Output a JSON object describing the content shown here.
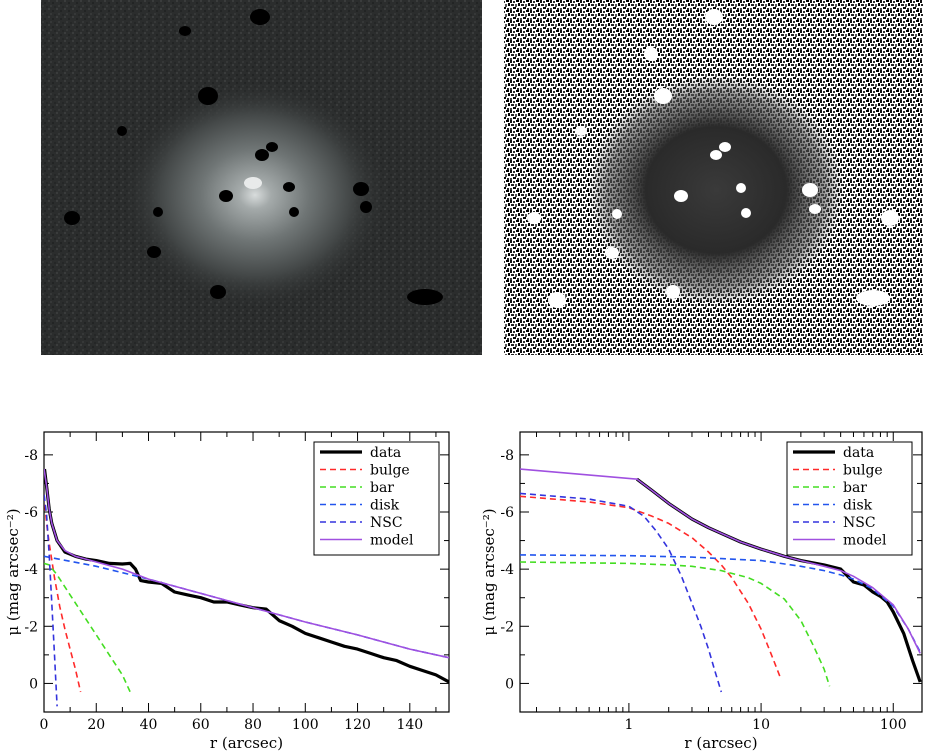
{
  "chart_data": [
    {
      "type": "image",
      "panel": "top-left",
      "description_visible": "grayscale galaxy image with masked (black) point sources"
    },
    {
      "type": "image",
      "panel": "top-right",
      "description_visible": "residual image with masked (white) point sources"
    },
    {
      "type": "line",
      "panel": "bottom-left",
      "xlabel": "r (arcsec)",
      "ylabel": "μ (mag arcsec⁻²)",
      "xscale": "linear",
      "xlim": [
        0,
        155
      ],
      "ylim": [
        1.0,
        -8.8
      ],
      "x_ticks": [
        0,
        20,
        40,
        60,
        80,
        100,
        120,
        140
      ],
      "x_tick_labels": [
        "0",
        "20",
        "40",
        "60",
        "80",
        "100",
        "120",
        "140"
      ],
      "y_ticks": [
        -8,
        -6,
        -4,
        -2,
        0
      ],
      "y_tick_labels": [
        "-8",
        "-6",
        "-4",
        "-2",
        "0"
      ],
      "legend_position": "top-right",
      "series": [
        {
          "name": "data",
          "color": "#000000",
          "style": "solid",
          "width": 3.2,
          "x": [
            0.2,
            1,
            2,
            3,
            5,
            8,
            12,
            16,
            20,
            25,
            30,
            33,
            35,
            37,
            40,
            45,
            50,
            55,
            60,
            65,
            70,
            75,
            80,
            85,
            90,
            95,
            100,
            105,
            110,
            115,
            120,
            125,
            130,
            135,
            140,
            145,
            150,
            155
          ],
          "y": [
            -7.5,
            -6.9,
            -6.1,
            -5.6,
            -5.0,
            -4.6,
            -4.45,
            -4.35,
            -4.3,
            -4.2,
            -4.18,
            -4.2,
            -4.0,
            -3.6,
            -3.55,
            -3.5,
            -3.2,
            -3.1,
            -3.0,
            -2.85,
            -2.85,
            -2.75,
            -2.65,
            -2.6,
            -2.2,
            -2.0,
            -1.75,
            -1.6,
            -1.45,
            -1.3,
            -1.2,
            -1.05,
            -0.9,
            -0.8,
            -0.6,
            -0.45,
            -0.3,
            -0.05
          ]
        },
        {
          "name": "bulge",
          "color": "#ff2a2a",
          "style": "dashed",
          "width": 1.6,
          "x": [
            0.05,
            1,
            2,
            4,
            6,
            8,
            10,
            12,
            14
          ],
          "y": [
            -6.6,
            -5.6,
            -4.9,
            -3.7,
            -2.7,
            -1.9,
            -1.2,
            -0.5,
            0.3
          ]
        },
        {
          "name": "bar",
          "color": "#44dd22",
          "style": "dashed",
          "width": 1.6,
          "x": [
            0.05,
            2,
            5,
            10,
            15,
            20,
            25,
            30,
            33
          ],
          "y": [
            -4.2,
            -4.15,
            -3.8,
            -3.1,
            -2.4,
            -1.7,
            -1.0,
            -0.3,
            0.3
          ]
        },
        {
          "name": "disk",
          "color": "#2255ee",
          "style": "dashed",
          "width": 1.6,
          "x": [
            0.05,
            20,
            40,
            60,
            80,
            100,
            120,
            140,
            155
          ],
          "y": [
            -4.45,
            -4.1,
            -3.65,
            -3.15,
            -2.65,
            -2.15,
            -1.7,
            -1.2,
            -0.9
          ]
        },
        {
          "name": "NSC",
          "color": "#3333dd",
          "style": "dashed",
          "width": 1.6,
          "x": [
            0.05,
            1,
            2,
            3,
            4,
            5
          ],
          "y": [
            -6.6,
            -5.9,
            -4.5,
            -2.8,
            -1.0,
            0.8
          ]
        },
        {
          "name": "model",
          "color": "#a050e0",
          "style": "solid",
          "width": 1.6,
          "x": [
            0.05,
            1,
            2,
            3,
            5,
            8,
            12,
            16,
            20,
            30,
            40,
            60,
            80,
            100,
            120,
            140,
            155
          ],
          "y": [
            -7.5,
            -6.9,
            -6.1,
            -5.6,
            -5.0,
            -4.65,
            -4.45,
            -4.35,
            -4.25,
            -4.0,
            -3.65,
            -3.15,
            -2.65,
            -2.15,
            -1.7,
            -1.2,
            -0.9
          ]
        }
      ]
    },
    {
      "type": "line",
      "panel": "bottom-right",
      "xlabel": "r (arcsec)",
      "ylabel": "μ (mag arcsec⁻²)",
      "xscale": "log",
      "xlim": [
        0.15,
        165
      ],
      "ylim": [
        1.0,
        -8.8
      ],
      "x_ticks": [
        1,
        10,
        100
      ],
      "x_tick_labels": [
        "1",
        "10",
        "100"
      ],
      "y_ticks": [
        -8,
        -6,
        -4,
        -2,
        0
      ],
      "y_tick_labels": [
        "-8",
        "-6",
        "-4",
        "-2",
        "0"
      ],
      "legend_position": "top-right",
      "series": [
        {
          "name": "data",
          "color": "#000000",
          "style": "solid",
          "width": 3.2,
          "x": [
            1.15,
            1.5,
            2,
            3,
            4,
            5,
            7,
            10,
            15,
            20,
            30,
            40,
            50,
            60,
            70,
            80,
            90,
            100,
            120,
            140,
            160
          ],
          "y": [
            -7.15,
            -6.75,
            -6.3,
            -5.75,
            -5.45,
            -5.25,
            -4.95,
            -4.7,
            -4.45,
            -4.3,
            -4.15,
            -4.0,
            -3.55,
            -3.45,
            -3.2,
            -3.05,
            -2.85,
            -2.5,
            -1.75,
            -0.8,
            -0.05
          ]
        },
        {
          "name": "bulge",
          "color": "#ff2a2a",
          "style": "dashed",
          "width": 1.6,
          "x": [
            0.15,
            0.5,
            1,
            1.5,
            2,
            3,
            4,
            5,
            6,
            8,
            10,
            12,
            14
          ],
          "y": [
            -6.55,
            -6.35,
            -6.15,
            -5.85,
            -5.6,
            -5.1,
            -4.6,
            -4.15,
            -3.7,
            -2.8,
            -1.9,
            -1.0,
            -0.2
          ]
        },
        {
          "name": "bar",
          "color": "#44dd22",
          "style": "dashed",
          "width": 1.6,
          "x": [
            0.15,
            1,
            2,
            3,
            5,
            8,
            10,
            15,
            20,
            25,
            30,
            33
          ],
          "y": [
            -4.25,
            -4.2,
            -4.15,
            -4.1,
            -3.95,
            -3.7,
            -3.5,
            -2.95,
            -2.2,
            -1.3,
            -0.5,
            0.1
          ]
        },
        {
          "name": "disk",
          "color": "#2255ee",
          "style": "dashed",
          "width": 1.6,
          "x": [
            0.15,
            1,
            3,
            5,
            10,
            20,
            30,
            40,
            50,
            70,
            100,
            130,
            160
          ],
          "y": [
            -4.5,
            -4.47,
            -4.42,
            -4.37,
            -4.3,
            -4.1,
            -3.95,
            -3.8,
            -3.65,
            -3.3,
            -2.7,
            -1.9,
            -1.1
          ]
        },
        {
          "name": "NSC",
          "color": "#3333dd",
          "style": "dashed",
          "width": 1.6,
          "x": [
            0.15,
            0.5,
            1,
            1.3,
            1.6,
            2,
            2.5,
            3,
            3.5,
            4,
            4.5,
            5
          ],
          "y": [
            -6.65,
            -6.45,
            -6.2,
            -5.85,
            -5.35,
            -4.7,
            -3.75,
            -2.8,
            -2.0,
            -1.2,
            -0.4,
            0.3
          ]
        },
        {
          "name": "model",
          "color": "#a050e0",
          "style": "solid",
          "width": 1.6,
          "x": [
            0.15,
            1.15,
            1.5,
            2,
            3,
            4,
            5,
            7,
            10,
            15,
            20,
            30,
            40,
            50,
            70,
            100,
            130,
            160
          ],
          "y": [
            -7.5,
            -7.15,
            -6.75,
            -6.3,
            -5.75,
            -5.45,
            -5.25,
            -4.95,
            -4.7,
            -4.45,
            -4.3,
            -4.1,
            -3.95,
            -3.75,
            -3.35,
            -2.75,
            -1.9,
            -1.05
          ]
        }
      ]
    }
  ]
}
